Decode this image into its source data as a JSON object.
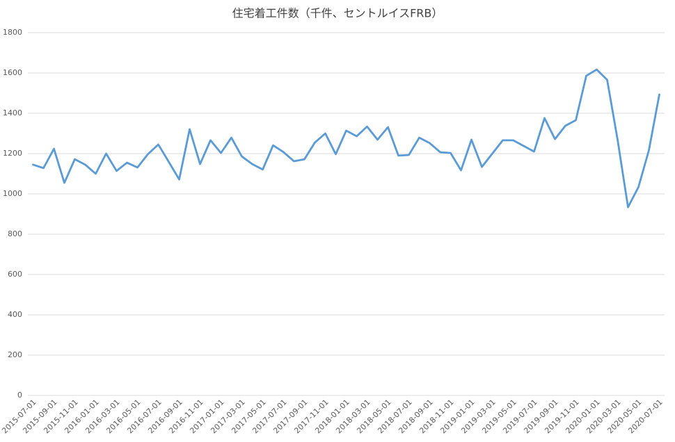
{
  "chart_data": {
    "type": "line",
    "title": "住宅着工件数（千件、セントルイスFRB）",
    "categories": [
      "2015-07-01",
      null,
      "2015-09-01",
      null,
      "2015-11-01",
      null,
      "2016-01-01",
      null,
      "2016-03-01",
      null,
      "2016-05-01",
      null,
      "2016-07-01",
      null,
      "2016-09-01",
      null,
      "2016-11-01",
      null,
      "2017-01-01",
      null,
      "2017-03-01",
      null,
      "2017-05-01",
      null,
      "2017-07-01",
      null,
      "2017-09-01",
      null,
      "2017-11-01",
      null,
      "2018-01-01",
      null,
      "2018-03-01",
      null,
      "2018-05-01",
      null,
      "2018-07-01",
      null,
      "2018-09-01",
      null,
      "2018-11-01",
      null,
      "2019-01-01",
      null,
      "2019-03-01",
      null,
      "2019-05-01",
      null,
      "2019-07-01",
      null,
      "2019-09-01",
      null,
      "2019-11-01",
      null,
      "2020-01-01",
      null,
      "2020-03-01",
      null,
      "2020-05-01",
      null,
      "2020-07-01"
    ],
    "values": [
      1145,
      1128,
      1224,
      1055,
      1172,
      1145,
      1100,
      1200,
      1114,
      1155,
      1131,
      1197,
      1245,
      1159,
      1072,
      1321,
      1148,
      1266,
      1203,
      1279,
      1186,
      1148,
      1121,
      1241,
      1207,
      1162,
      1172,
      1255,
      1300,
      1197,
      1314,
      1286,
      1334,
      1269,
      1331,
      1190,
      1193,
      1279,
      1252,
      1207,
      1203,
      1117,
      1269,
      1134,
      1200,
      1266,
      1266,
      1238,
      1210,
      1376,
      1272,
      1338,
      1366,
      1586,
      1617,
      1566,
      1269,
      934,
      1034,
      1217,
      1493
    ],
    "color": "#5b9bd5",
    "ylim": [
      0,
      1800
    ],
    "yticks": [
      0,
      200,
      400,
      600,
      800,
      1000,
      1200,
      1400,
      1600,
      1800
    ],
    "grid": true
  }
}
